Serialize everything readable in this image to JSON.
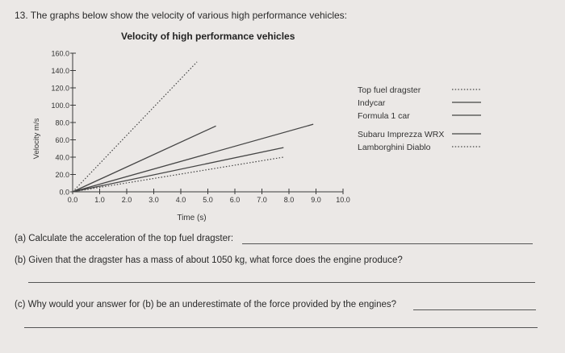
{
  "header": {
    "question_intro": "13. The graphs below show the velocity of various high performance vehicles:"
  },
  "chart_data": {
    "type": "line",
    "title": "Velocity of high performance vehicles",
    "xlabel": "Time (s)",
    "ylabel": "Velocity m/s",
    "xlim": [
      0,
      10
    ],
    "ylim": [
      0,
      160
    ],
    "x_ticks": [
      "0.0",
      "1.0",
      "2.0",
      "3.0",
      "4.0",
      "5.0",
      "6.0",
      "7.0",
      "8.0",
      "9.0",
      "10.0"
    ],
    "y_ticks": [
      "0.0",
      "20.0",
      "40.0",
      "60.0",
      "80.0",
      "100.0",
      "120.0",
      "140.0",
      "160.0"
    ],
    "grid": false,
    "legend_position": "right",
    "series": [
      {
        "name": "Top fuel dragster",
        "style": "dotted",
        "x": [
          0,
          4.6
        ],
        "y": [
          0,
          150
        ]
      },
      {
        "name": "Indycar",
        "style": "solid",
        "x": [
          0,
          5.3
        ],
        "y": [
          0,
          76
        ]
      },
      {
        "name": "Formula 1 car",
        "style": "solid",
        "x": [
          0,
          8.9
        ],
        "y": [
          0,
          78
        ]
      },
      {
        "name": "Subaru Imprezza WRX",
        "style": "solid",
        "x": [
          0,
          7.8
        ],
        "y": [
          0,
          51
        ]
      },
      {
        "name": "Lamborghini Diablo",
        "style": "dotted",
        "x": [
          0,
          7.8
        ],
        "y": [
          0,
          40
        ]
      }
    ],
    "colors": {
      "line": "#444444",
      "axis": "#3a3a3a"
    }
  },
  "questions": {
    "a": "(a) Calculate the acceleration of the top fuel dragster:",
    "b": "(b) Given that the dragster has a mass of about 1050 kg, what force does the engine produce?",
    "c": "(c) Why would your answer for (b) be an underestimate of the force provided by the engines?"
  }
}
